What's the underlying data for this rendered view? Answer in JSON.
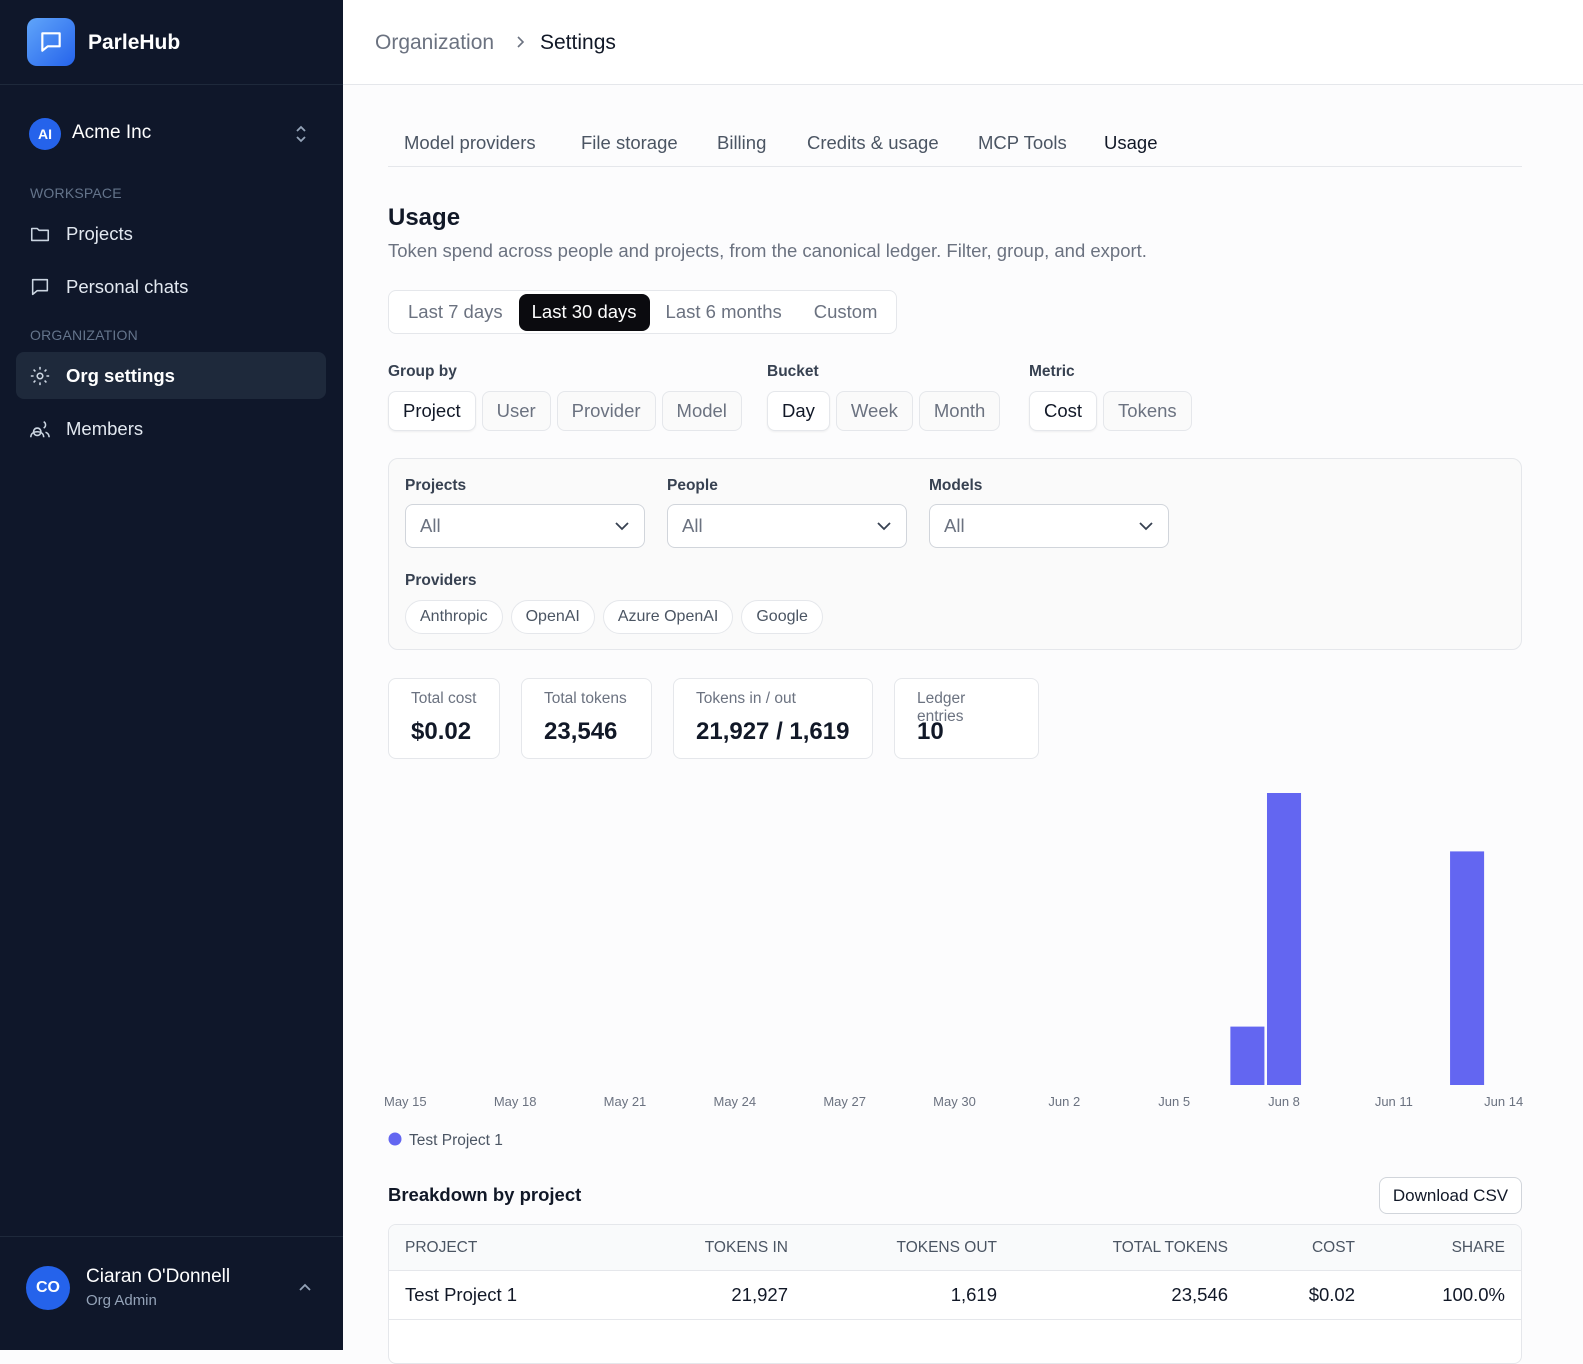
{
  "sidebar": {
    "brand": "ParleHub",
    "org": {
      "initials": "AI",
      "name": "Acme Inc"
    },
    "sections": [
      {
        "label": "WORKSPACE",
        "items": [
          "Projects",
          "Personal chats"
        ]
      },
      {
        "label": "ORGANIZATION",
        "items": [
          "Org settings",
          "Members"
        ],
        "selected": 0
      }
    ],
    "user": {
      "initials": "CO",
      "name": "Ciaran O'Donnell",
      "role": "Org Admin"
    }
  },
  "breadcrumb": [
    "Organization",
    "Settings"
  ],
  "tabs": {
    "items": [
      "Model providers",
      "File storage",
      "Billing",
      "Credits & usage",
      "MCP Tools",
      "Usage"
    ],
    "selected": 5
  },
  "page": {
    "title": "Usage",
    "subtitle": "Token spend across people and projects, from the canonical ledger. Filter, group, and export."
  },
  "ranges": {
    "items": [
      "Last 7 days",
      "Last 30 days",
      "Last 6 months",
      "Custom"
    ],
    "selected": 1
  },
  "controls": [
    {
      "label": "Group by",
      "options": [
        "Project",
        "User",
        "Provider",
        "Model"
      ],
      "selected": 0
    },
    {
      "label": "Bucket",
      "options": [
        "Day",
        "Week",
        "Month"
      ],
      "selected": 0
    },
    {
      "label": "Metric",
      "options": [
        "Cost",
        "Tokens"
      ],
      "selected": 0
    }
  ],
  "filters": {
    "selects": [
      {
        "label": "Projects",
        "value": "All"
      },
      {
        "label": "People",
        "value": "All"
      },
      {
        "label": "Models",
        "value": "All"
      }
    ],
    "providers": {
      "label": "Providers",
      "options": [
        "Anthropic",
        "OpenAI",
        "Azure OpenAI",
        "Google"
      ]
    }
  },
  "stats": [
    {
      "label": "Total cost",
      "value": "$0.02"
    },
    {
      "label": "Total tokens",
      "value": "23,546"
    },
    {
      "label": "Tokens in / out",
      "value": "21,927 / 1,619"
    },
    {
      "label": "Ledger entries",
      "value": "10"
    }
  ],
  "chart_data": {
    "type": "bar",
    "categories": [
      "May 15",
      null,
      null,
      "May 18",
      null,
      null,
      "May 21",
      null,
      null,
      "May 24",
      null,
      null,
      "May 27",
      null,
      null,
      "May 30",
      null,
      null,
      "Jun 2",
      null,
      null,
      "Jun 5",
      null,
      null,
      "Jun 8",
      null,
      null,
      "Jun 11",
      null,
      null,
      "Jun 14"
    ],
    "series": [
      {
        "name": "Test Project 1",
        "color": "#6366f1",
        "values": [
          0,
          0,
          0,
          0,
          0,
          0,
          0,
          0,
          0,
          0,
          0,
          0,
          0,
          0,
          0,
          0,
          0,
          0,
          0,
          0,
          0,
          0,
          0,
          0.002,
          0.01,
          0,
          0,
          0,
          0,
          0.008,
          0
        ]
      }
    ],
    "ylim": [
      0,
      0.01
    ],
    "grid": false
  },
  "breakdown": {
    "title": "Breakdown by project",
    "action": "Download CSV",
    "columns": [
      "PROJECT",
      "TOKENS IN",
      "TOKENS OUT",
      "TOTAL TOKENS",
      "COST",
      "SHARE"
    ],
    "rows": [
      [
        "Test Project 1",
        "21,927",
        "1,619",
        "23,546",
        "$0.02",
        "100.0%"
      ]
    ]
  }
}
